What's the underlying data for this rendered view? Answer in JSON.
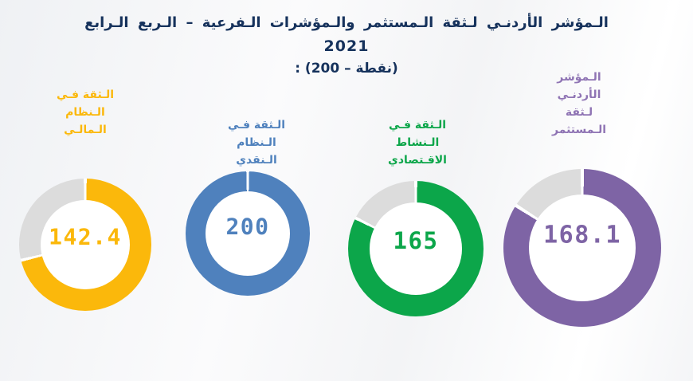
{
  "title": {
    "line1": "الـمؤشر الأردنـي لـثقة الـمستثمر والـمؤشرات الـفرعية – الـربع الـرابع",
    "line2": "2021",
    "line3": "(نقطة – 200) :"
  },
  "colors": {
    "title_text": "#16325C",
    "track": "#DCDCDC",
    "financial_system": "#FBB80B",
    "monetary_system": "#4F81BD",
    "economic_activity": "#0CA64A",
    "investor_confidence_ring": "#7E64A5",
    "investor_confidence_label": "#8F74B4",
    "background": "#F3F4F6"
  },
  "chart_data": {
    "type": "pie",
    "subtype": "donut-gauges",
    "title": "المؤشر الأردني لثقة المستثمر والمؤشرات الفرعية – الربع الرابع 2021",
    "subtitle": "(نقطة – 200) :",
    "max_scale": 200,
    "unit": "نقطة",
    "track_color": "#DCDCDC",
    "legend_position": "labels-above-donuts",
    "donuts": [
      {
        "name": "confidence-financial-system",
        "label": "الثقة في النظام المالي",
        "label_lines": [
          "الـثقة فـي",
          "الـنظام",
          "الـمالـي"
        ],
        "value": 142.4,
        "display": "142.4",
        "color": "#FBB80B",
        "label_color": "#FBB80B"
      },
      {
        "name": "confidence-monetary-system",
        "label": "الثقة في النظام النقدي",
        "label_lines": [
          "الـثقة فـي",
          "الـنظام",
          "الـنقدي"
        ],
        "value": 200,
        "display": "200",
        "color": "#4F81BD",
        "label_color": "#4F81BD"
      },
      {
        "name": "confidence-economic-activity",
        "label": "الثقة في النشاط الاقتصادي",
        "label_lines": [
          "الـثقة فـي",
          "الـنشاط",
          "الاقـتصادي"
        ],
        "value": 165,
        "display": "165",
        "color": "#0CA64A",
        "label_color": "#0CA64A"
      },
      {
        "name": "jordan-investor-confidence-index",
        "label": "المؤشر الأردني لثقة المستثمر",
        "label_lines": [
          "الـمؤشر",
          "الأردنـي",
          "لـثقة",
          "الـمستثمر"
        ],
        "value": 168.1,
        "display": "168.1",
        "color": "#7E64A5",
        "label_color": "#8F74B4"
      }
    ]
  }
}
